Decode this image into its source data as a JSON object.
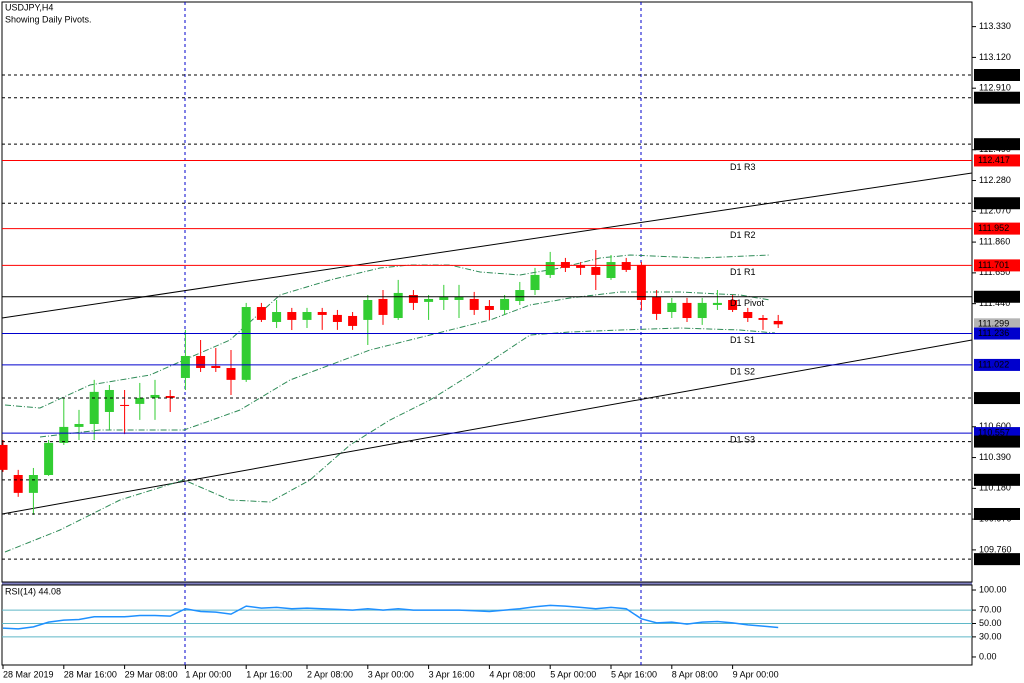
{
  "chart_data": [
    {
      "type": "candlestick",
      "title": "USDJPY,H4",
      "subtitle": "Showing Daily Pivots.",
      "categories": [
        "28 Mar 2019",
        null,
        null,
        null,
        "28 Mar 16:00",
        null,
        null,
        null,
        "29 Mar 08:00",
        null,
        null,
        null,
        "1 Apr 00:00",
        null,
        null,
        null,
        "1 Apr 16:00",
        null,
        null,
        null,
        "2 Apr 08:00",
        null,
        null,
        null,
        "3 Apr 00:00",
        null,
        null,
        null,
        "3 Apr 16:00",
        null,
        null,
        null,
        "4 Apr 08:00",
        null,
        null,
        null,
        "5 Apr 00:00",
        null,
        null,
        null,
        "5 Apr 16:00",
        null,
        null,
        null,
        "8 Apr 08:00",
        null,
        null,
        null,
        "9 Apr 00:00",
        null,
        null,
        null
      ],
      "open": [
        110.476,
        110.271,
        110.149,
        110.271,
        110.49,
        110.599,
        110.619,
        110.701,
        110.749,
        110.756,
        110.797,
        110.81,
        110.933,
        111.083,
        111.015,
        111.001,
        110.92,
        111.417,
        111.315,
        111.383,
        111.329,
        111.383,
        111.363,
        111.356,
        111.329,
        111.472,
        111.342,
        111.499,
        111.452,
        111.465,
        111.465,
        111.472,
        111.424,
        111.397,
        111.458,
        111.533,
        111.636,
        111.724,
        111.704,
        111.69,
        111.615,
        111.724,
        111.704,
        111.486,
        111.383,
        111.445,
        111.342,
        111.431,
        111.465,
        111.383,
        111.342,
        111.322
      ],
      "high": [
        110.51,
        110.306,
        110.319,
        110.51,
        110.797,
        110.715,
        110.92,
        110.885,
        110.851,
        110.899,
        110.92,
        110.851,
        111.261,
        111.192,
        111.138,
        111.124,
        111.445,
        111.445,
        111.465,
        111.411,
        111.411,
        111.411,
        111.397,
        111.383,
        111.499,
        111.533,
        111.602,
        111.533,
        111.499,
        111.568,
        111.568,
        111.52,
        111.465,
        111.499,
        111.588,
        111.684,
        111.793,
        111.752,
        111.724,
        111.806,
        111.772,
        111.752,
        111.724,
        111.533,
        111.479,
        111.479,
        111.479,
        111.533,
        111.499,
        111.411,
        111.363,
        111.363
      ],
      "low": [
        110.292,
        110.122,
        109.999,
        110.265,
        110.476,
        110.51,
        110.51,
        110.579,
        110.55,
        110.647,
        110.647,
        110.701,
        110.851,
        110.974,
        110.974,
        110.817,
        110.906,
        111.315,
        111.274,
        111.26,
        111.274,
        111.261,
        111.261,
        111.261,
        111.158,
        111.295,
        111.329,
        111.397,
        111.329,
        111.397,
        111.342,
        111.363,
        111.329,
        111.363,
        111.431,
        111.499,
        111.615,
        111.656,
        111.636,
        111.533,
        111.602,
        111.656,
        111.397,
        111.329,
        111.342,
        111.315,
        111.295,
        111.397,
        111.383,
        111.315,
        111.261,
        111.274
      ],
      "close": [
        110.306,
        110.149,
        110.271,
        110.49,
        110.599,
        110.619,
        110.838,
        110.851,
        110.742,
        110.797,
        110.817,
        110.797,
        111.083,
        111.001,
        111.001,
        110.92,
        111.417,
        111.329,
        111.383,
        111.329,
        111.383,
        111.363,
        111.315,
        111.288,
        111.465,
        111.363,
        111.513,
        111.445,
        111.472,
        111.486,
        111.486,
        111.397,
        111.397,
        111.472,
        111.533,
        111.636,
        111.724,
        111.684,
        111.684,
        111.636,
        111.724,
        111.67,
        111.465,
        111.37,
        111.445,
        111.342,
        111.445,
        111.445,
        111.397,
        111.342,
        111.329,
        111.299
      ],
      "up_color": "#32cd32",
      "down_color": "#ff0000",
      "ylim": [
        109.541,
        113.498
      ],
      "yticks": [
        {
          "value": 113.33,
          "label": "113.330"
        },
        {
          "value": 113.12,
          "label": "113.120"
        },
        {
          "value": 112.91,
          "label": "112.910"
        },
        {
          "value": 112.49,
          "label": "112.490"
        },
        {
          "value": 112.28,
          "label": "112.280"
        },
        {
          "value": 112.07,
          "label": "112.070"
        },
        {
          "value": 111.86,
          "label": "111.860"
        },
        {
          "value": 111.65,
          "label": "111.650"
        },
        {
          "value": 111.44,
          "label": "111.440"
        },
        {
          "value": 110.6,
          "label": "110.600"
        },
        {
          "value": 110.39,
          "label": "110.390"
        },
        {
          "value": 110.18,
          "label": "110.180"
        },
        {
          "value": 109.97,
          "label": "109.970"
        },
        {
          "value": 109.76,
          "label": "109.760"
        }
      ],
      "levels": [
        {
          "value": 113.0,
          "label": "113.000",
          "color": "#000000",
          "line": "dashed"
        },
        {
          "value": 112.845,
          "label": "112.845",
          "color": "#000000",
          "line": "dashed"
        },
        {
          "value": 112.528,
          "label": "112.528",
          "color": "#000000",
          "line": "dashed"
        },
        {
          "value": 112.417,
          "label": "112.417",
          "name": "D1 R3",
          "color": "#ff0000",
          "line": "solid"
        },
        {
          "value": 112.125,
          "label": "112.125",
          "color": "#000000",
          "line": "dashed"
        },
        {
          "value": 111.952,
          "label": "111.952",
          "name": "D1 R2",
          "color": "#ff0000",
          "line": "solid"
        },
        {
          "value": 111.701,
          "label": "111.701",
          "name": "D1 R1",
          "color": "#ff0000",
          "line": "solid"
        },
        {
          "value": 111.487,
          "label": "111.487",
          "name": "D1 Pivot",
          "color": "#000000",
          "line": "solid"
        },
        {
          "value": 111.299,
          "label": "111.299",
          "color": "#b4b4b4",
          "line": "none"
        },
        {
          "value": 111.236,
          "label": "111.236",
          "name": "D1 S1",
          "color": "#0000cd",
          "line": "solid"
        },
        {
          "value": 111.022,
          "label": "111.022",
          "name": "D1 S2",
          "color": "#0000cd",
          "line": "solid"
        },
        {
          "value": 110.796,
          "label": "110.796",
          "color": "#000000",
          "line": "dashed"
        },
        {
          "value": 110.557,
          "label": "110.557",
          "name": "D1 S3",
          "color": "#0000cd",
          "line": "solid"
        },
        {
          "value": 110.499,
          "label": "110.499",
          "color": "#000000",
          "line": "dashed"
        },
        {
          "value": 110.238,
          "label": "110.238",
          "color": "#000000",
          "line": "dashed"
        },
        {
          "value": 110.005,
          "label": "110.005",
          "color": "#000000",
          "line": "dashed"
        },
        {
          "value": 109.697,
          "label": "109.697",
          "color": "#000000",
          "line": "dashed"
        }
      ]
    },
    {
      "type": "line",
      "title": "RSI(14) 44.08",
      "color": "#1e90ff",
      "values": [
        43,
        42,
        45,
        52,
        55,
        56,
        60,
        60,
        60,
        62,
        62,
        61,
        72,
        68,
        67,
        64,
        76,
        73,
        74,
        72,
        73,
        72,
        71,
        70,
        72,
        70,
        72,
        70,
        70,
        70,
        70,
        69,
        68,
        70,
        72,
        75,
        77,
        76,
        74,
        72,
        74,
        72,
        57,
        51,
        52,
        49,
        52,
        53,
        51,
        48,
        46,
        44.08
      ],
      "ylim": [
        -12,
        107.5
      ],
      "yticks": [
        {
          "value": 100,
          "label": "100.00"
        },
        {
          "value": 70,
          "label": "70.00"
        },
        {
          "value": 50,
          "label": "50.00"
        },
        {
          "value": 30,
          "label": "30.00"
        },
        {
          "value": 0,
          "label": "0.00"
        }
      ],
      "levels": [
        70,
        50,
        30
      ],
      "level_color": "#5fb8c8"
    }
  ]
}
